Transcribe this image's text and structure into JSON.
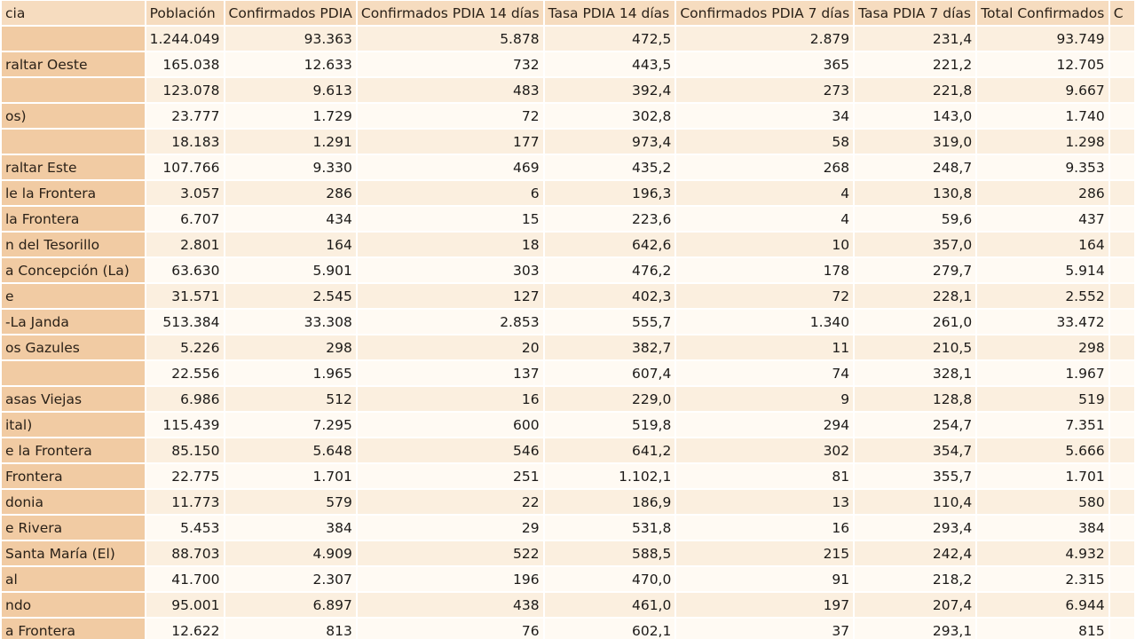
{
  "table": {
    "headers": [
      "cia",
      "Población",
      "Confirmados PDIA",
      "Confirmados PDIA 14 días",
      "Tasa PDIA 14 días",
      "Confirmados PDIA 7 días",
      "Tasa PDIA 7 días",
      "Total Confirmados",
      "C"
    ],
    "rows": [
      [
        "",
        "1.244.049",
        "93.363",
        "5.878",
        "472,5",
        "2.879",
        "231,4",
        "93.749",
        ""
      ],
      [
        "raltar Oeste",
        "165.038",
        "12.633",
        "732",
        "443,5",
        "365",
        "221,2",
        "12.705",
        ""
      ],
      [
        "",
        "123.078",
        "9.613",
        "483",
        "392,4",
        "273",
        "221,8",
        "9.667",
        ""
      ],
      [
        "os)",
        "23.777",
        "1.729",
        "72",
        "302,8",
        "34",
        "143,0",
        "1.740",
        ""
      ],
      [
        "",
        "18.183",
        "1.291",
        "177",
        "973,4",
        "58",
        "319,0",
        "1.298",
        ""
      ],
      [
        "raltar Este",
        "107.766",
        "9.330",
        "469",
        "435,2",
        "268",
        "248,7",
        "9.353",
        ""
      ],
      [
        "le la Frontera",
        "3.057",
        "286",
        "6",
        "196,3",
        "4",
        "130,8",
        "286",
        ""
      ],
      [
        " la Frontera",
        "6.707",
        "434",
        "15",
        "223,6",
        "4",
        "59,6",
        "437",
        ""
      ],
      [
        "n del Tesorillo",
        "2.801",
        "164",
        "18",
        "642,6",
        "10",
        "357,0",
        "164",
        ""
      ],
      [
        "a Concepción (La)",
        "63.630",
        "5.901",
        "303",
        "476,2",
        "178",
        "279,7",
        "5.914",
        ""
      ],
      [
        "e",
        "31.571",
        "2.545",
        "127",
        "402,3",
        "72",
        "228,1",
        "2.552",
        ""
      ],
      [
        "-La Janda",
        "513.384",
        "33.308",
        "2.853",
        "555,7",
        "1.340",
        "261,0",
        "33.472",
        ""
      ],
      [
        "os Gazules",
        "5.226",
        "298",
        "20",
        "382,7",
        "11",
        "210,5",
        "298",
        ""
      ],
      [
        "",
        "22.556",
        "1.965",
        "137",
        "607,4",
        "74",
        "328,1",
        "1.967",
        ""
      ],
      [
        "asas Viejas",
        "6.986",
        "512",
        "16",
        "229,0",
        "9",
        "128,8",
        "519",
        ""
      ],
      [
        "ital)",
        "115.439",
        "7.295",
        "600",
        "519,8",
        "294",
        "254,7",
        "7.351",
        ""
      ],
      [
        "e la Frontera",
        "85.150",
        "5.648",
        "546",
        "641,2",
        "302",
        "354,7",
        "5.666",
        ""
      ],
      [
        " Frontera",
        "22.775",
        "1.701",
        "251",
        "1.102,1",
        "81",
        "355,7",
        "1.701",
        ""
      ],
      [
        "donia",
        "11.773",
        "579",
        "22",
        "186,9",
        "13",
        "110,4",
        "580",
        ""
      ],
      [
        "e Rivera",
        "5.453",
        "384",
        "29",
        "531,8",
        "16",
        "293,4",
        "384",
        ""
      ],
      [
        "Santa María (El)",
        "88.703",
        "4.909",
        "522",
        "588,5",
        "215",
        "242,4",
        "4.932",
        ""
      ],
      [
        "al",
        "41.700",
        "2.307",
        "196",
        "470,0",
        "91",
        "218,2",
        "2.315",
        ""
      ],
      [
        "ndo",
        "95.001",
        "6.897",
        "438",
        "461,0",
        "197",
        "207,4",
        "6.944",
        ""
      ],
      [
        "a Frontera",
        "12.622",
        "813",
        "76",
        "602,1",
        "37",
        "293,1",
        "815",
        ""
      ]
    ]
  }
}
